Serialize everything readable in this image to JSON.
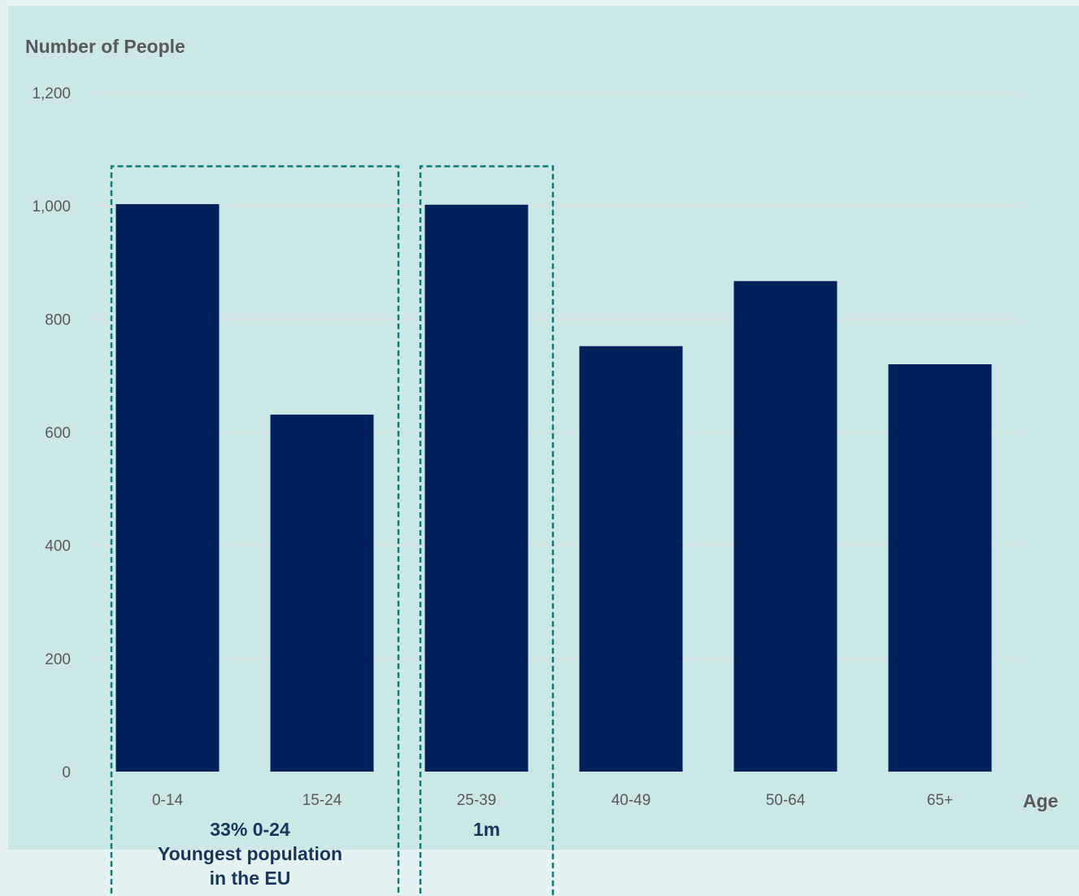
{
  "chart_data": {
    "type": "bar",
    "ylabel": "Number of People",
    "xlabel": "Age",
    "categories": [
      "0-14",
      "15-24",
      "25-39",
      "40-49",
      "50-64",
      "65+"
    ],
    "values": [
      1003,
      631,
      1002,
      752,
      867,
      720
    ],
    "ylim": [
      0,
      1200
    ],
    "yticks": [
      0,
      200,
      400,
      600,
      800,
      1000,
      1200
    ],
    "ytick_labels": [
      "0",
      "200",
      "400",
      "600",
      "800",
      "1,000",
      "1,200"
    ],
    "grid": true,
    "annotations": [
      {
        "id": "young",
        "groups": [
          "0-14",
          "15-24"
        ],
        "lines": [
          "33% 0-24",
          "Youngest population",
          "in the EU"
        ]
      },
      {
        "id": "mid",
        "groups": [
          "25-39"
        ],
        "lines": [
          "1m"
        ]
      }
    ]
  },
  "colors": {
    "bar": "#00205b",
    "gridline": "#dcdcdc",
    "annotation_box": "#0e7b7b",
    "annotation_text": "#17365d"
  }
}
